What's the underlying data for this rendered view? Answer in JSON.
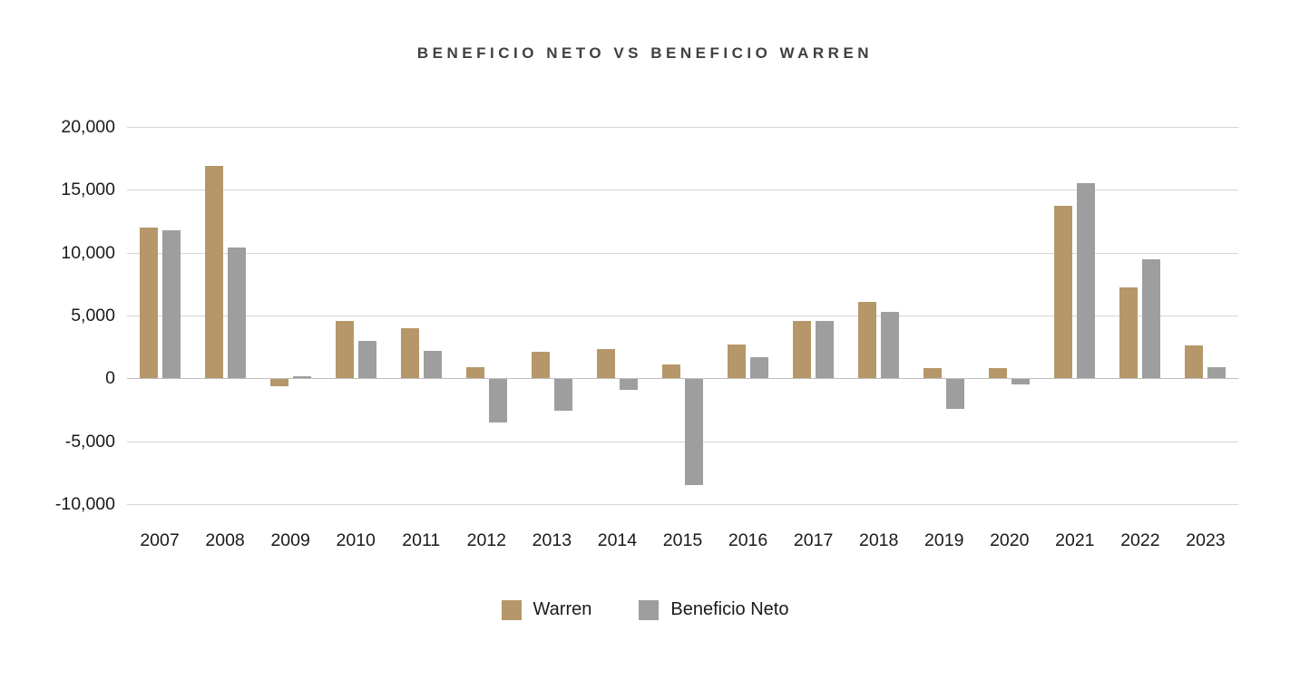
{
  "chart_data": {
    "type": "bar",
    "title": "BENEFICIO NETO VS BENEFICIO WARREN",
    "xlabel": "",
    "ylabel": "",
    "categories": [
      "2007",
      "2008",
      "2009",
      "2010",
      "2011",
      "2012",
      "2013",
      "2014",
      "2015",
      "2016",
      "2017",
      "2018",
      "2019",
      "2020",
      "2021",
      "2022",
      "2023"
    ],
    "series": [
      {
        "name": "Warren",
        "color": "#b69769",
        "values": [
          12000,
          16900,
          -600,
          4600,
          4000,
          900,
          2100,
          2300,
          1100,
          2700,
          4600,
          6100,
          800,
          800,
          13700,
          7200,
          2600
        ]
      },
      {
        "name": "Beneficio Neto",
        "color": "#9e9e9e",
        "values": [
          11800,
          10400,
          150,
          3000,
          2200,
          -3500,
          -2600,
          -900,
          -8500,
          1700,
          4600,
          5300,
          -2400,
          -500,
          15500,
          9500,
          900
        ]
      }
    ],
    "ylim": [
      -10000,
      20000
    ],
    "yticks": [
      {
        "value": 20000,
        "label": "20,000"
      },
      {
        "value": 15000,
        "label": "15,000"
      },
      {
        "value": 10000,
        "label": "10,000"
      },
      {
        "value": 5000,
        "label": "5,000"
      },
      {
        "value": 0,
        "label": "0"
      },
      {
        "value": -5000,
        "label": "-5,000"
      },
      {
        "value": -10000,
        "label": "-10,000"
      }
    ],
    "grid": "horizontal",
    "legend_position": "bottom"
  }
}
